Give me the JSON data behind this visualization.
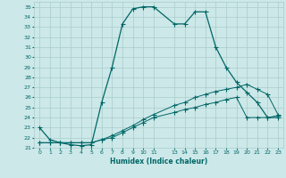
{
  "xlabel": "Humidex (Indice chaleur)",
  "background_color": "#cce8e8",
  "grid_color": "#aacccc",
  "line_color": "#006666",
  "xlim": [
    -0.5,
    23.5
  ],
  "ylim": [
    21,
    35.5
  ],
  "xticks": [
    0,
    1,
    2,
    3,
    4,
    5,
    6,
    7,
    8,
    9,
    10,
    11,
    13,
    14,
    15,
    16,
    17,
    18,
    19,
    20,
    21,
    22,
    23
  ],
  "yticks": [
    21,
    22,
    23,
    24,
    25,
    26,
    27,
    28,
    29,
    30,
    31,
    32,
    33,
    34,
    35
  ],
  "line1_x": [
    0,
    1,
    2,
    3,
    4,
    5,
    6,
    7,
    8,
    9,
    10,
    11,
    13,
    14,
    15,
    16,
    17,
    18,
    19,
    20,
    21,
    22,
    23
  ],
  "line1_y": [
    23.0,
    21.8,
    21.5,
    21.3,
    21.2,
    21.3,
    25.5,
    29.0,
    33.3,
    34.8,
    35.0,
    35.0,
    33.3,
    33.3,
    34.5,
    34.5,
    31.0,
    29.0,
    27.5,
    26.5,
    25.5,
    24.0,
    24.0
  ],
  "line2_x": [
    0,
    1,
    2,
    3,
    4,
    5,
    6,
    7,
    8,
    9,
    10,
    11,
    13,
    14,
    15,
    16,
    17,
    18,
    19,
    20,
    21,
    22,
    23
  ],
  "line2_y": [
    21.5,
    21.5,
    21.5,
    21.5,
    21.5,
    21.5,
    21.8,
    22.2,
    22.7,
    23.2,
    23.8,
    24.3,
    25.2,
    25.5,
    26.0,
    26.3,
    26.6,
    26.8,
    27.0,
    27.3,
    26.8,
    26.3,
    24.3
  ],
  "line3_x": [
    0,
    1,
    2,
    3,
    4,
    5,
    6,
    7,
    8,
    9,
    10,
    11,
    13,
    14,
    15,
    16,
    17,
    18,
    19,
    20,
    21,
    22,
    23
  ],
  "line3_y": [
    21.5,
    21.5,
    21.5,
    21.5,
    21.5,
    21.5,
    21.8,
    22.0,
    22.5,
    23.0,
    23.5,
    24.0,
    24.5,
    24.8,
    25.0,
    25.3,
    25.5,
    25.8,
    26.0,
    24.0,
    24.0,
    24.0,
    24.2
  ]
}
